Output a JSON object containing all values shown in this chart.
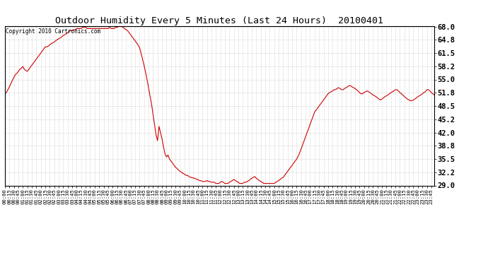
{
  "title": "Outdoor Humidity Every 5 Minutes (Last 24 Hours)  20100401",
  "copyright_text": "Copyright 2010 Cartronics.com",
  "line_color": "#cc0000",
  "background_color": "#ffffff",
  "grid_color": "#c8c8c8",
  "ylim": [
    29.0,
    68.0
  ],
  "yticks": [
    29.0,
    32.2,
    35.5,
    38.8,
    42.0,
    45.2,
    48.5,
    51.8,
    55.0,
    58.2,
    61.5,
    64.8,
    68.0
  ],
  "humidity_values": [
    51.5,
    51.8,
    52.5,
    53.2,
    54.0,
    54.8,
    55.5,
    56.2,
    56.5,
    57.0,
    57.5,
    57.8,
    58.2,
    57.5,
    57.2,
    57.0,
    57.5,
    58.0,
    58.5,
    59.0,
    59.5,
    60.0,
    60.5,
    61.0,
    61.5,
    62.0,
    62.5,
    63.0,
    63.0,
    63.2,
    63.5,
    63.8,
    64.0,
    64.2,
    64.5,
    64.8,
    65.0,
    65.2,
    65.5,
    65.8,
    66.0,
    66.2,
    66.5,
    66.8,
    67.0,
    67.0,
    67.2,
    67.2,
    67.5,
    67.5,
    67.5,
    67.5,
    67.8,
    67.8,
    67.8,
    67.5,
    67.5,
    67.5,
    67.5,
    67.5,
    67.5,
    67.5,
    67.5,
    67.5,
    67.5,
    67.5,
    67.5,
    67.5,
    67.5,
    67.5,
    67.8,
    67.5,
    67.5,
    67.5,
    67.8,
    67.8,
    68.0,
    68.2,
    68.0,
    67.8,
    67.5,
    67.2,
    67.0,
    66.5,
    66.0,
    65.5,
    65.0,
    64.5,
    64.0,
    63.5,
    62.8,
    61.5,
    60.0,
    58.5,
    56.8,
    55.0,
    53.0,
    51.0,
    49.0,
    46.5,
    44.0,
    41.5,
    40.0,
    43.5,
    42.0,
    40.5,
    38.5,
    36.8,
    36.0,
    36.5,
    35.5,
    35.0,
    34.5,
    34.0,
    33.5,
    33.2,
    32.8,
    32.5,
    32.2,
    32.0,
    31.8,
    31.5,
    31.5,
    31.2,
    31.0,
    31.0,
    30.8,
    30.8,
    30.5,
    30.5,
    30.2,
    30.2,
    30.0,
    30.0,
    30.0,
    30.2,
    30.0,
    30.0,
    29.8,
    29.8,
    29.8,
    29.5,
    29.5,
    29.5,
    29.8,
    30.0,
    29.8,
    29.5,
    29.5,
    29.5,
    29.8,
    30.0,
    30.2,
    30.5,
    30.2,
    30.0,
    29.8,
    29.5,
    29.5,
    29.5,
    29.8,
    29.8,
    30.0,
    30.2,
    30.5,
    30.8,
    31.0,
    31.2,
    30.8,
    30.5,
    30.2,
    30.0,
    29.8,
    29.5,
    29.5,
    29.5,
    29.5,
    29.5,
    29.5,
    29.5,
    29.5,
    29.8,
    30.0,
    30.2,
    30.5,
    30.8,
    31.0,
    31.5,
    32.0,
    32.5,
    33.0,
    33.5,
    34.0,
    34.5,
    35.0,
    35.5,
    36.2,
    37.0,
    38.0,
    39.0,
    40.0,
    41.0,
    42.0,
    43.0,
    44.0,
    45.0,
    46.0,
    47.0,
    47.5,
    48.0,
    48.5,
    49.0,
    49.5,
    50.0,
    50.5,
    51.0,
    51.5,
    51.8,
    52.0,
    52.2,
    52.5,
    52.5,
    52.8,
    53.0,
    52.8,
    52.5,
    52.5,
    52.8,
    53.0,
    53.2,
    53.5,
    53.5,
    53.2,
    53.0,
    52.8,
    52.5,
    52.2,
    51.8,
    51.5,
    51.5,
    51.8,
    52.0,
    52.2,
    52.0,
    51.8,
    51.5,
    51.2,
    51.0,
    50.8,
    50.5,
    50.2,
    50.0,
    50.2,
    50.5,
    50.8,
    51.0,
    51.2,
    51.5,
    51.8,
    52.0,
    52.2,
    52.5,
    52.5,
    52.2,
    51.8,
    51.5,
    51.2,
    50.8,
    50.5,
    50.2,
    50.0,
    49.8,
    49.8,
    50.0,
    50.2,
    50.5,
    50.8,
    51.0,
    51.2,
    51.5,
    51.8,
    52.0,
    52.5,
    52.5,
    52.2,
    51.8,
    51.5,
    51.2,
    51.0,
    50.8,
    50.5,
    50.2,
    50.0,
    50.0
  ]
}
